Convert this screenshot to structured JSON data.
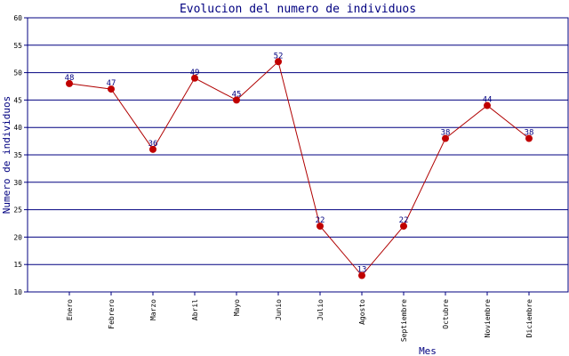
{
  "chart_data": {
    "type": "line",
    "title": "Evolucion del numero de individuos",
    "xlabel": "Mes",
    "ylabel": "Numero de individuos",
    "categories": [
      "Enero",
      "Febrero",
      "Marzo",
      "Abril",
      "Mayo",
      "Junio",
      "Julio",
      "Agosto",
      "Septiembre",
      "Octubre",
      "Noviembre",
      "Diciembre"
    ],
    "series": [
      {
        "values": [
          48,
          47,
          36,
          49,
          45,
          52,
          22,
          13,
          22,
          38,
          44,
          38
        ]
      }
    ],
    "ylim": [
      10,
      60
    ],
    "yticks": [
      10,
      15,
      20,
      25,
      30,
      35,
      40,
      45,
      50,
      55,
      60
    ],
    "grid": true,
    "colors": {
      "line": "#b00000",
      "marker": "#c00000",
      "grid": "#000080",
      "axis": "#000080",
      "labels": "#000080"
    }
  }
}
